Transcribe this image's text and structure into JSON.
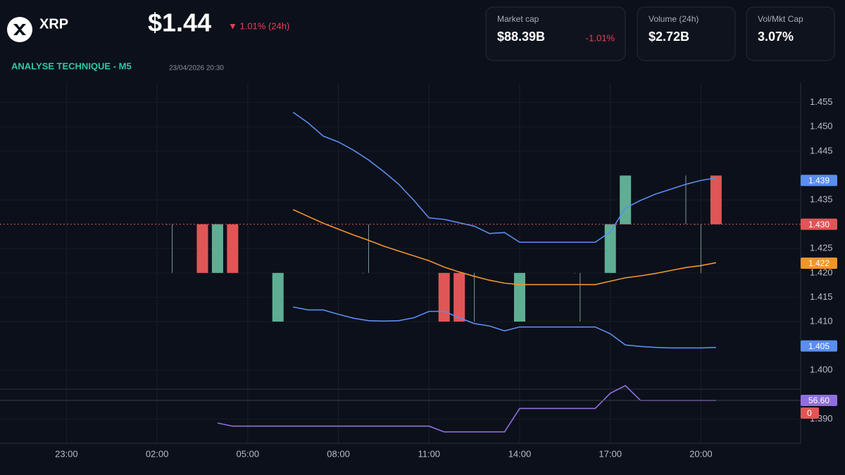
{
  "header": {
    "symbol": "XRP",
    "price": "$1.44",
    "change": "▼ 1.01% (24h)",
    "stats": [
      {
        "label": "Market cap",
        "value": "$88.39B",
        "change": "-1.01%"
      },
      {
        "label": "Volume (24h)",
        "value": "$2.72B"
      },
      {
        "label": "Vol/Mkt Cap",
        "value": "3.07%"
      }
    ]
  },
  "chart_data": {
    "type": "candlestick",
    "title": "ANALYSE TECHNIQUE - M5",
    "subtitle": "23/04/2026 20:30",
    "x": [
      26.5,
      27.5,
      28,
      28.5,
      30,
      33,
      35.5,
      36,
      36.5,
      38,
      40,
      41,
      41.5,
      43.5,
      44,
      44.5
    ],
    "open": [
      1.43,
      1.43,
      1.42,
      1.43,
      1.41,
      1.42,
      1.42,
      1.42,
      1.41,
      1.41,
      1.42,
      1.42,
      1.43,
      1.43,
      1.43,
      1.44
    ],
    "high": [
      1.43,
      1.43,
      1.43,
      1.43,
      1.42,
      1.43,
      1.42,
      1.42,
      1.42,
      1.42,
      1.42,
      1.43,
      1.44,
      1.44,
      1.43,
      1.44
    ],
    "low": [
      1.42,
      1.42,
      1.42,
      1.42,
      1.41,
      1.42,
      1.41,
      1.41,
      1.41,
      1.41,
      1.41,
      1.42,
      1.43,
      1.43,
      1.42,
      1.43
    ],
    "close": [
      1.43,
      1.42,
      1.43,
      1.42,
      1.42,
      1.42,
      1.41,
      1.41,
      1.41,
      1.42,
      1.42,
      1.43,
      1.44,
      1.43,
      1.43,
      1.43
    ],
    "up_color": "#5fae94",
    "down_color": "#e05656",
    "flat_color": "#7f9a94",
    "xlim": [
      20.8,
      47.3
    ],
    "xticks": [
      {
        "value": 23,
        "label": "23:00"
      },
      {
        "value": 26,
        "label": "02:00"
      },
      {
        "value": 29,
        "label": "05:00"
      },
      {
        "value": 32,
        "label": "08:00"
      },
      {
        "value": 35,
        "label": "11:00"
      },
      {
        "value": 38,
        "label": "14:00"
      },
      {
        "value": 41,
        "label": "17:00"
      },
      {
        "value": 44,
        "label": "20:00"
      }
    ],
    "ylim": [
      1.385,
      1.459
    ],
    "yticks": [
      1.455,
      {
        "value": 1.45,
        "label": "1.450"
      },
      1.445,
      1.435,
      1.425,
      {
        "value": 1.42,
        "label": "1.420"
      },
      1.415,
      {
        "value": 1.41,
        "label": "1.410"
      },
      {
        "value": 1.4,
        "label": "1.400"
      },
      {
        "value": 1.39,
        "label": "1.390"
      }
    ],
    "grid": true,
    "overlays": [
      {
        "color": "#5b8def",
        "x": [
          30.5,
          31,
          31.5,
          32,
          32.5,
          33,
          33.5,
          34,
          34.5,
          35,
          35.5,
          36,
          36.5,
          37,
          37.5,
          38,
          38.5,
          39,
          39.5,
          40,
          40.5,
          41,
          41.5,
          42,
          42.5,
          43,
          43.5,
          44,
          44.5
        ],
        "values": [
          1.453,
          1.4508,
          1.4481,
          1.4469,
          1.4452,
          1.4432,
          1.4408,
          1.4382,
          1.4349,
          1.4313,
          1.431,
          1.4303,
          1.4296,
          1.4281,
          1.4283,
          1.4263,
          1.4263,
          1.4263,
          1.4263,
          1.4263,
          1.4263,
          1.4284,
          1.4333,
          1.4349,
          1.4362,
          1.4372,
          1.4382,
          1.439,
          1.4395
        ]
      },
      {
        "color": "#f0952b",
        "x": [
          30.5,
          31,
          31.5,
          32,
          32.5,
          33,
          33.5,
          34,
          34.5,
          35,
          35.5,
          36,
          36.5,
          37,
          37.5,
          38,
          38.5,
          39,
          39.5,
          40,
          40.5,
          41,
          41.5,
          42,
          42.5,
          43,
          43.5,
          44,
          44.5
        ],
        "values": [
          1.433,
          1.4316,
          1.4302,
          1.429,
          1.4278,
          1.4267,
          1.4255,
          1.4245,
          1.4235,
          1.4225,
          1.4212,
          1.4202,
          1.4193,
          1.4185,
          1.4179,
          1.4176,
          1.4176,
          1.4176,
          1.4176,
          1.4176,
          1.4176,
          1.4183,
          1.419,
          1.4194,
          1.4199,
          1.4205,
          1.4211,
          1.4215,
          1.4221
        ]
      },
      {
        "color": "#5b8def",
        "x": [
          30.5,
          31,
          31.5,
          32,
          32.5,
          33,
          33.5,
          34,
          34.5,
          35,
          35.5,
          36,
          36.5,
          37,
          37.5,
          38,
          38.5,
          39,
          39.5,
          40,
          40.5,
          41,
          41.5,
          42,
          42.5,
          43,
          43.5,
          44,
          44.5
        ],
        "values": [
          1.413,
          1.4124,
          1.4124,
          1.4115,
          1.4107,
          1.4102,
          1.4101,
          1.4102,
          1.4108,
          1.4121,
          1.4121,
          1.4108,
          1.4096,
          1.4091,
          1.4081,
          1.4089,
          1.4089,
          1.4089,
          1.4089,
          1.4089,
          1.4089,
          1.4075,
          1.4052,
          1.4049,
          1.4047,
          1.4046,
          1.4046,
          1.4046,
          1.4047
        ]
      }
    ],
    "price_markers": [
      {
        "value": 1.439,
        "color": "#5b8def"
      },
      {
        "value": 1.43,
        "label": "1.430",
        "color": "#e05656",
        "dashed_line": true
      },
      {
        "value": 1.422,
        "color": "#f0952b"
      },
      {
        "value": 1.405,
        "color": "#5b8def"
      }
    ],
    "indicator": {
      "color": "#8f6fe0",
      "ylim": [
        0,
        100
      ],
      "x": [
        28,
        28.5,
        29,
        29.5,
        30,
        30.5,
        31,
        31.5,
        32,
        32.5,
        33,
        33.5,
        34,
        34.5,
        35,
        35.5,
        36,
        36.5,
        37,
        37.5,
        38,
        38.5,
        39,
        39.5,
        40,
        40.5,
        41,
        41.5,
        42,
        42.5,
        43,
        43.5,
        44,
        44.5
      ],
      "values": [
        21,
        16,
        16,
        16,
        16,
        16,
        16,
        16,
        16,
        16,
        16,
        16,
        16,
        16,
        16,
        7,
        7,
        7,
        7,
        7,
        44,
        44,
        44,
        44,
        44,
        44,
        68,
        80,
        56.6,
        56.6,
        56.6,
        56.6,
        56.6,
        56.6
      ],
      "markers": [
        {
          "value": 56.6,
          "label": "56.60",
          "color": "#8f6fe0"
        },
        {
          "value": 0,
          "color": "#e05656"
        }
      ]
    }
  }
}
